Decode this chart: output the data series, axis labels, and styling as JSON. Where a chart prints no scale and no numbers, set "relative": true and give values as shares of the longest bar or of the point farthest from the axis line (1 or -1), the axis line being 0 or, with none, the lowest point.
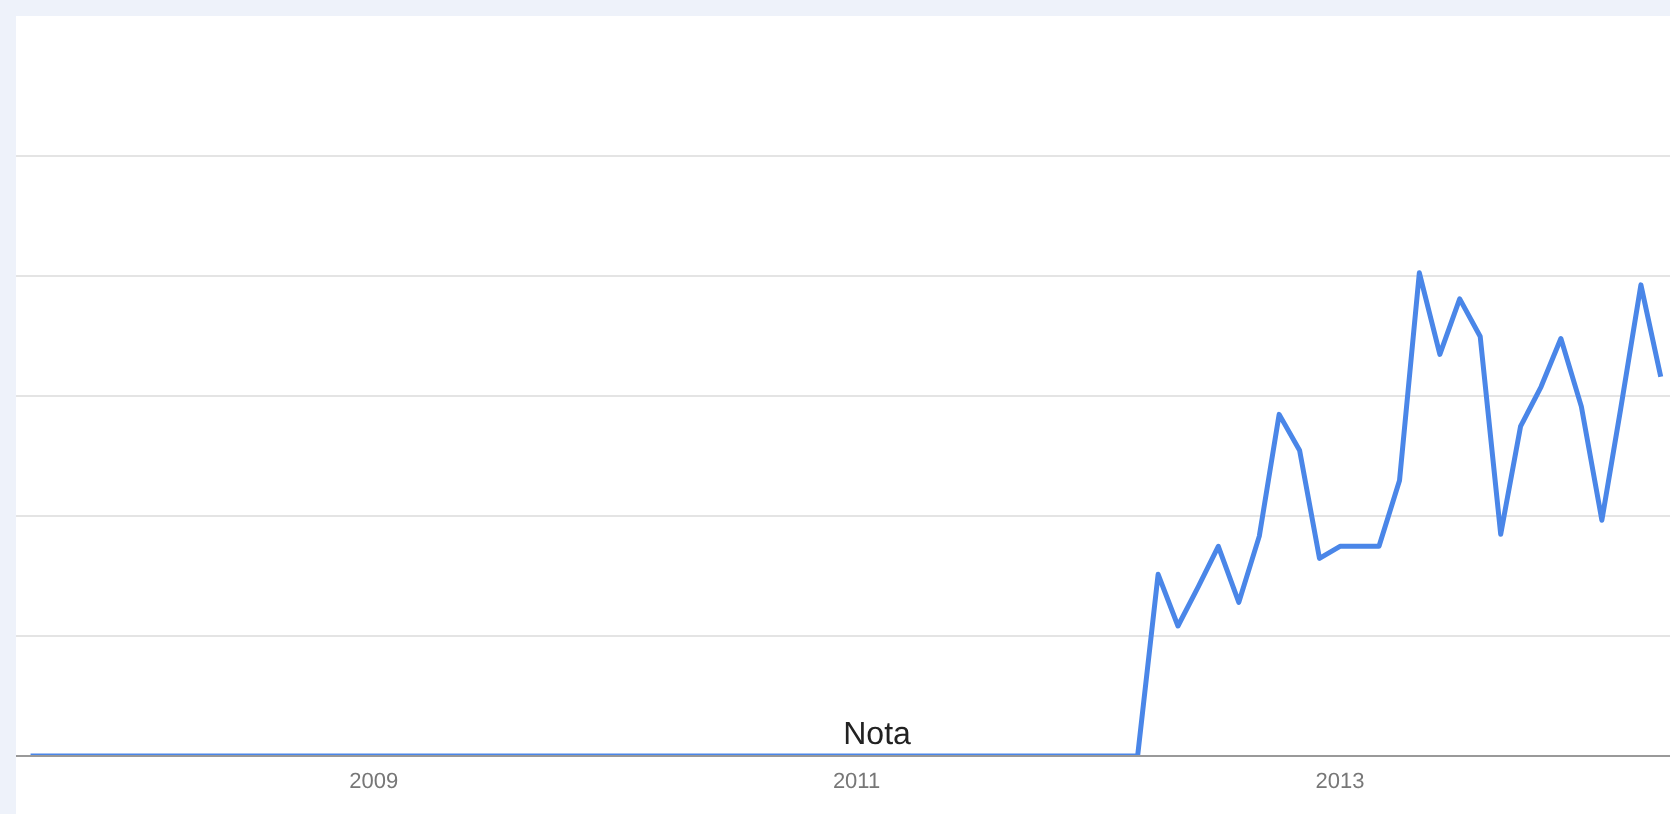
{
  "chart_data": {
    "type": "line",
    "relative": true,
    "x": [
      "2007-08",
      "2012-03",
      "2012-04",
      "2012-05",
      "2012-06",
      "2012-07",
      "2012-08",
      "2012-09",
      "2012-10",
      "2012-11",
      "2012-12",
      "2013-01",
      "2013-02",
      "2013-03",
      "2013-04",
      "2013-05",
      "2013-06",
      "2013-07",
      "2013-08",
      "2013-09",
      "2013-10",
      "2013-11",
      "2013-12",
      "2014-01",
      "2014-02",
      "2014-03",
      "2014-04",
      "2014-05"
    ],
    "series": [
      {
        "color": "#4a86e8",
        "values": [
          0,
          0,
          0.376,
          0.269,
          0.351,
          0.434,
          0.318,
          0.455,
          0.707,
          0.632,
          0.409,
          0.434,
          0.434,
          0.434,
          0.57,
          1,
          0.831,
          0.946,
          0.868,
          0.459,
          0.682,
          0.764,
          0.864,
          0.723,
          0.488,
          0.715,
          0.975,
          0.785
        ]
      }
    ],
    "xlim": [
      "2007-07-10",
      "2014-05-15"
    ],
    "xticks": [
      "2009",
      "2011",
      "2013"
    ],
    "grid": "y",
    "marker": "none",
    "line_style": "solid",
    "annotations": [
      {
        "text": "Nota",
        "x": "2011-02",
        "y": 0
      }
    ]
  }
}
